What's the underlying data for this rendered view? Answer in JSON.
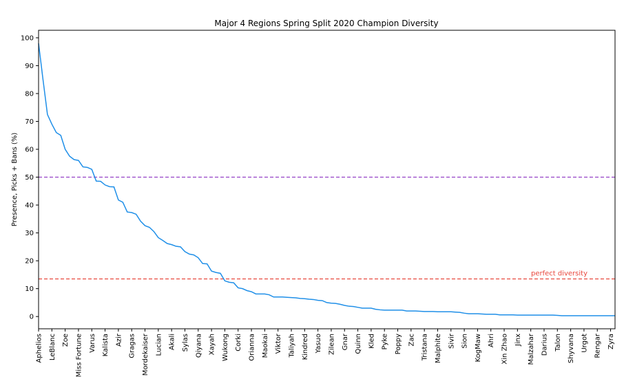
{
  "chart_data": {
    "type": "line",
    "title": "Major 4 Regions Spring Split 2020 Champion Diversity",
    "ylabel": "Presence, Picks + Bans (%)",
    "categories": [
      "Aphelios",
      null,
      null,
      "LeBlanc",
      null,
      null,
      "Zoe",
      null,
      null,
      "Miss Fortune",
      null,
      null,
      "Varus",
      null,
      null,
      "Kalista",
      null,
      null,
      "Azir",
      null,
      null,
      "Gragas",
      null,
      null,
      "Mordekaiser",
      null,
      null,
      "Lucian",
      null,
      null,
      "Akali",
      null,
      null,
      "Sylas",
      null,
      null,
      "Qiyana",
      null,
      null,
      "Xayah",
      null,
      null,
      "Wukong",
      null,
      null,
      "Corki",
      null,
      null,
      "Orianna",
      null,
      null,
      "Maokai",
      null,
      null,
      "Viktor",
      null,
      null,
      "Taliyah",
      null,
      null,
      "Kindred",
      null,
      null,
      "Yasuo",
      null,
      null,
      "Zilean",
      null,
      null,
      "Gnar",
      null,
      null,
      "Quinn",
      null,
      null,
      "Kled",
      null,
      null,
      "Pyke",
      null,
      null,
      "Poppy",
      null,
      null,
      "Zac",
      null,
      null,
      "Tristana",
      null,
      null,
      "Malphite",
      null,
      null,
      "Sivir",
      null,
      null,
      "Sion",
      null,
      null,
      "KogMaw",
      null,
      null,
      "Ahri",
      null,
      null,
      "Xin Zhao",
      null,
      null,
      "Jinx",
      null,
      null,
      "Malzahar",
      null,
      null,
      "Darius",
      null,
      null,
      "Talon",
      null,
      null,
      "Shyvana",
      null,
      null,
      "Urgot",
      null,
      null,
      "Rengar",
      null,
      null,
      "Zyra",
      null
    ],
    "values": [
      98,
      85,
      72.5,
      69,
      66,
      65,
      60,
      57.5,
      56.3,
      56,
      53.7,
      53.5,
      52.8,
      48.6,
      48.5,
      47.2,
      46.6,
      46.5,
      41.8,
      41,
      37.5,
      37.3,
      36.7,
      34.2,
      32.6,
      32,
      30.5,
      28.3,
      27.3,
      26.2,
      25.8,
      25.2,
      25,
      23.3,
      22.4,
      22.1,
      21.1,
      19,
      18.9,
      16.3,
      15.8,
      15.5,
      12.8,
      12.3,
      12.1,
      10.3,
      10,
      9.3,
      8.9,
      8.1,
      8.1,
      8.1,
      7.8,
      7,
      7,
      7,
      6.9,
      6.8,
      6.7,
      6.5,
      6.4,
      6.2,
      6.1,
      5.8,
      5.7,
      5,
      4.8,
      4.7,
      4.4,
      4,
      3.7,
      3.6,
      3.3,
      3,
      3,
      3,
      2.6,
      2.4,
      2.3,
      2.3,
      2.3,
      2.3,
      2.3,
      2,
      2,
      2,
      1.9,
      1.8,
      1.8,
      1.8,
      1.7,
      1.7,
      1.7,
      1.7,
      1.6,
      1.5,
      1.2,
      1,
      1,
      1,
      0.9,
      0.8,
      0.8,
      0.8,
      0.6,
      0.6,
      0.6,
      0.6,
      0.5,
      0.5,
      0.5,
      0.5,
      0.5,
      0.5,
      0.5,
      0.5,
      0.5,
      0.4,
      0.3,
      0.3,
      0.3,
      0.3,
      0.3,
      0.3,
      0.3,
      0.3,
      0.3,
      0.3,
      0.3,
      0.3,
      0.3
    ],
    "color": "#1f8fe8",
    "xlim": [
      0,
      130
    ],
    "ylim": [
      -4.4,
      102.7
    ],
    "yticks": [
      0,
      10,
      20,
      30,
      40,
      50,
      60,
      70,
      80,
      90,
      100
    ],
    "hlines": [
      {
        "value": 50,
        "color": "#9b4dca"
      },
      {
        "value": 13.5,
        "color": "#e8463c",
        "label": "perfect diversity"
      }
    ]
  }
}
